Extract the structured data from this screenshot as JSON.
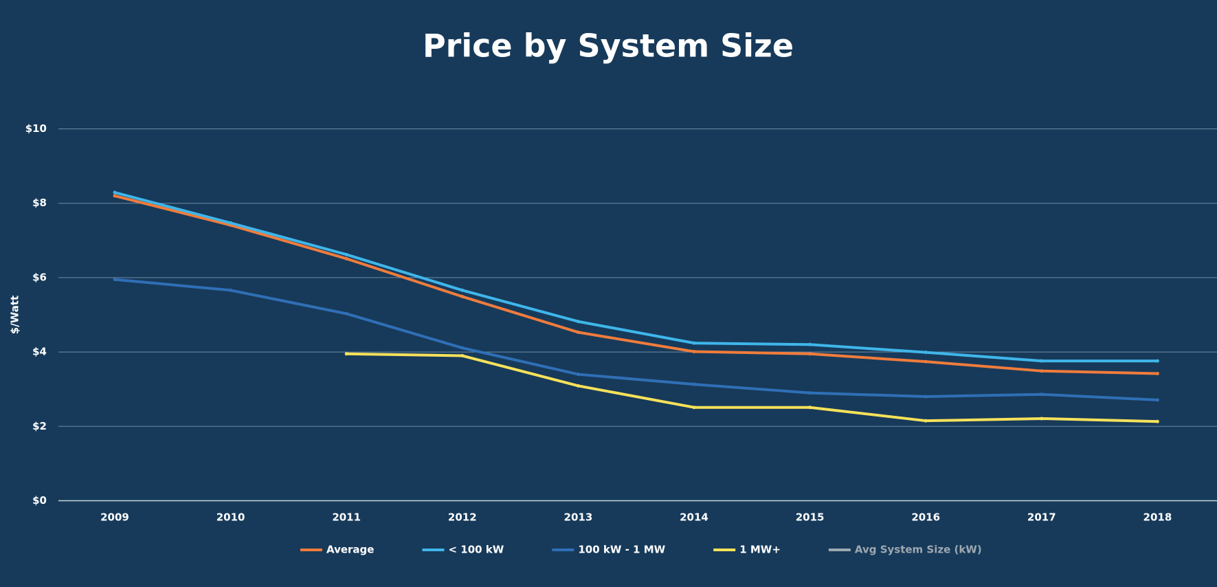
{
  "chart_data": {
    "type": "line",
    "title": "Price by System Size",
    "y_label": "$/Watt",
    "categories": [
      "2009",
      "2010",
      "2011",
      "2012",
      "2013",
      "2014",
      "2015",
      "2016",
      "2017",
      "2018"
    ],
    "series": [
      {
        "name": "Average",
        "color": "#f07c3c",
        "values": [
          8.2,
          7.41,
          6.51,
          5.49,
          4.53,
          4.01,
          3.95,
          3.74,
          3.49,
          3.42
        ]
      },
      {
        "name": "< 100 kW",
        "color": "#3fb6ea",
        "values": [
          8.29,
          7.47,
          6.62,
          5.66,
          4.82,
          4.24,
          4.2,
          3.99,
          3.76,
          3.76
        ]
      },
      {
        "name": "100 kW - 1 MW",
        "color": "#2f6fb6",
        "values": [
          5.95,
          5.66,
          5.03,
          4.11,
          3.4,
          3.13,
          2.9,
          2.8,
          2.86,
          2.71
        ]
      },
      {
        "name": "1 MW+",
        "color": "#f7e15a",
        "values": [
          null,
          null,
          3.95,
          3.9,
          3.09,
          2.51,
          2.51,
          2.15,
          2.21,
          2.13
        ]
      },
      {
        "name": "Avg System Size (kW)",
        "color": "#9ea7b0",
        "values": [
          null,
          null,
          null,
          null,
          null,
          null,
          null,
          null,
          null,
          null
        ]
      }
    ],
    "ylim": [
      0,
      10
    ],
    "yticks": [
      {
        "value": 0,
        "label": "$0"
      },
      {
        "value": 2,
        "label": "$2"
      },
      {
        "value": 4,
        "label": "$4"
      },
      {
        "value": 6,
        "label": "$6"
      },
      {
        "value": 8,
        "label": "$8"
      },
      {
        "value": 10,
        "label": "$10"
      }
    ],
    "grid": true,
    "legend": "bottom"
  }
}
